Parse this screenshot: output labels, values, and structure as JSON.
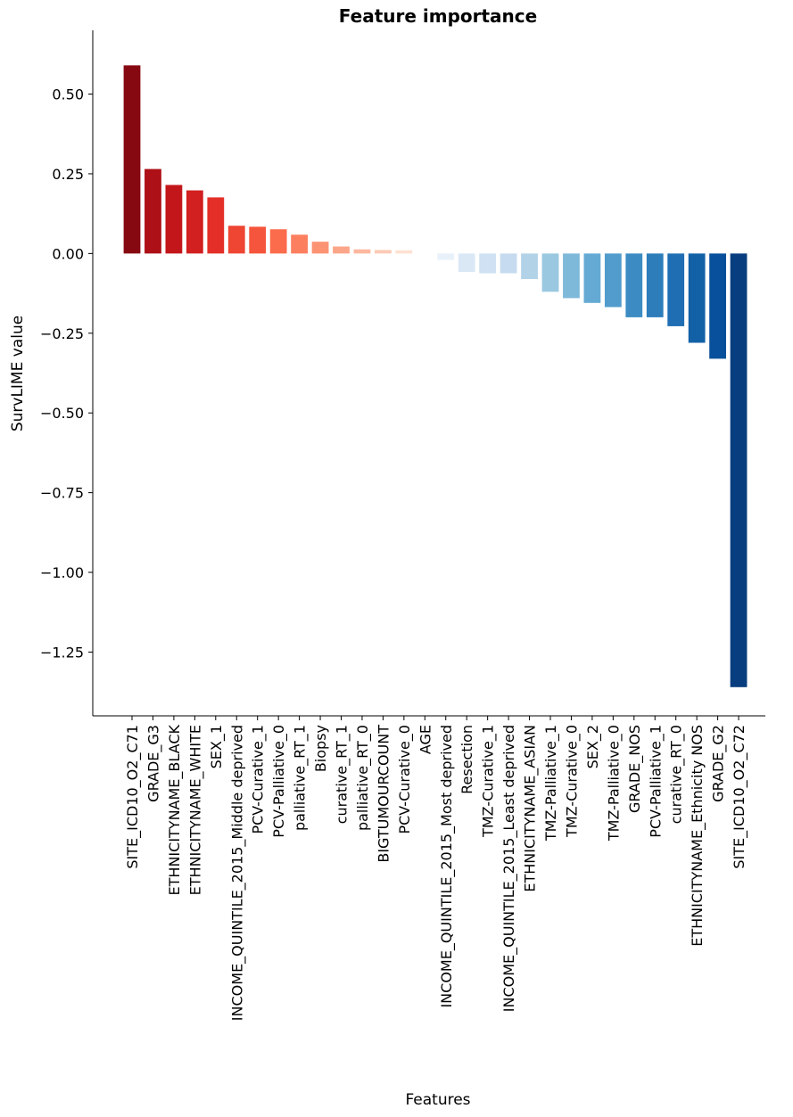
{
  "chart_data": {
    "type": "bar",
    "title": "Feature importance",
    "xlabel": "Features",
    "ylabel": "SurvLIME value",
    "ylim": [
      -1.45,
      0.7
    ],
    "yticks": [
      0.5,
      0.25,
      0.0,
      -0.25,
      -0.5,
      -0.75,
      -1.0,
      -1.25
    ],
    "ytick_labels": [
      "0.50",
      "0.25",
      "0.00",
      "−0.25",
      "−0.50",
      "−0.75",
      "−1.00",
      "−1.25"
    ],
    "grid": false,
    "categories": [
      "SITE_ICD10_O2_C71",
      "GRADE_G3",
      "ETHNICITYNAME_BLACK",
      "ETHNICITYNAME_WHITE",
      "SEX_1",
      "INCOME_QUINTILE_2015_Middle deprived",
      "PCV-Curative_1",
      "PCV-Palliative_0",
      "palliative_RT_1",
      "Biopsy",
      "curative_RT_1",
      "palliative_RT_0",
      "BIGTUMOURCOUNT",
      "PCV-Curative_0",
      "AGE",
      "INCOME_QUINTILE_2015_Most deprived",
      "Resection",
      "TMZ-Curative_1",
      "INCOME_QUINTILE_2015_Least deprived",
      "ETHNICITYNAME_ASIAN",
      "TMZ-Palliative_1",
      "TMZ-Curative_0",
      "SEX_2",
      "TMZ-Palliative_0",
      "GRADE_NOS",
      "PCV-Palliative_1",
      "curative_RT_0",
      "ETHNICITYNAME_Ethnicity NOS",
      "GRADE_G2",
      "SITE_ICD10_O2_C72"
    ],
    "values": [
      0.59,
      0.265,
      0.215,
      0.198,
      0.176,
      0.087,
      0.084,
      0.076,
      0.059,
      0.037,
      0.022,
      0.013,
      0.011,
      0.01,
      0.0,
      -0.02,
      -0.058,
      -0.062,
      -0.062,
      -0.08,
      -0.12,
      -0.14,
      -0.155,
      -0.168,
      -0.2,
      -0.2,
      -0.228,
      -0.28,
      -0.33,
      -1.36
    ],
    "colors": [
      "#860811",
      "#ad1016",
      "#c3161b",
      "#d21f20",
      "#e32f27",
      "#ef4533",
      "#f5553c",
      "#fb6c4c",
      "#fc8060",
      "#fc9474",
      "#fca689",
      "#fcb89e",
      "#fdcab5",
      "#fee0d2",
      "#f7fbff",
      "#e8f1fa",
      "#dae8f6",
      "#cfe1f2",
      "#c6dbef",
      "#b2d2e8",
      "#9ac8e0",
      "#7fb9da",
      "#65aad4",
      "#519ccc",
      "#3c8cc3",
      "#2d7dbb",
      "#1f6eb3",
      "#1261a7",
      "#08509b",
      "#083d7f"
    ]
  }
}
